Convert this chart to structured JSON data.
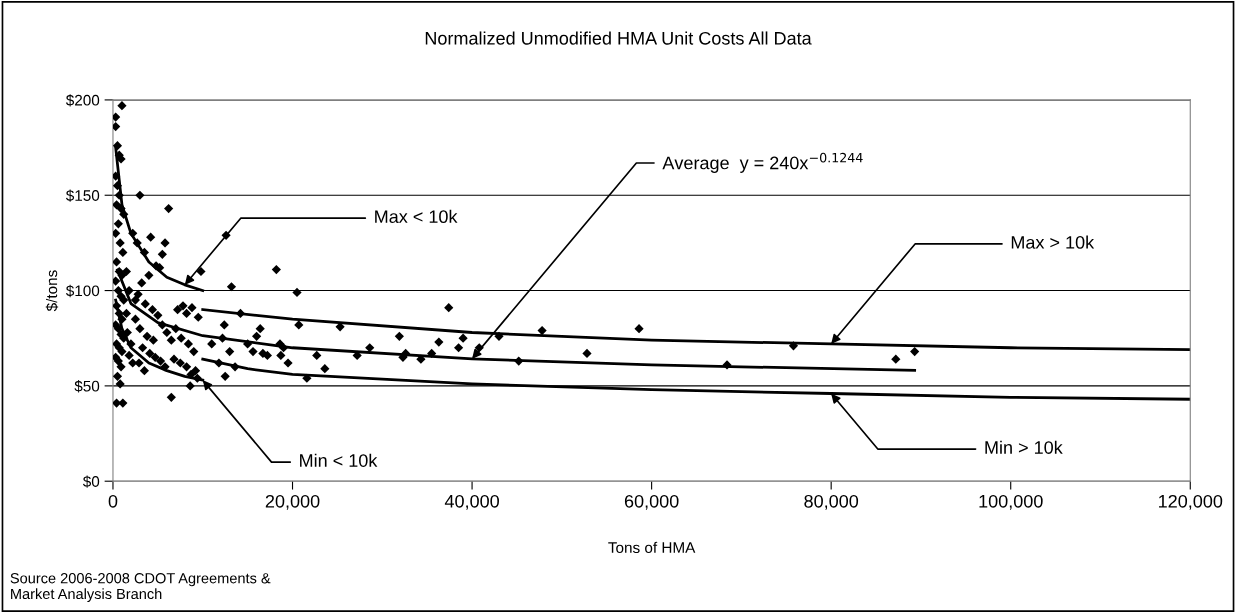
{
  "chart_data": {
    "type": "scatter",
    "title": "Normalized Unmodified HMA Unit Costs All Data",
    "xlabel": "Tons of HMA",
    "ylabel": "$/tons",
    "xlim": [
      0,
      120000
    ],
    "ylim": [
      0,
      200
    ],
    "xticks": [
      {
        "value": 0,
        "label": "0"
      },
      {
        "value": 20000,
        "label": "20,000"
      },
      {
        "value": 40000,
        "label": "40,000"
      },
      {
        "value": 60000,
        "label": "60,000"
      },
      {
        "value": 80000,
        "label": "80,000"
      },
      {
        "value": 100000,
        "label": "100,000"
      },
      {
        "value": 120000,
        "label": "120,000"
      }
    ],
    "yticks": [
      {
        "value": 0,
        "label": "$0"
      },
      {
        "value": 50,
        "label": "$50"
      },
      {
        "value": 100,
        "label": "$100"
      },
      {
        "value": 150,
        "label": "$150"
      },
      {
        "value": 200,
        "label": "$200"
      }
    ],
    "grid": "y",
    "legend": false,
    "series": [
      {
        "marker": "diamond",
        "color": "#000000",
        "x": [
          300,
          300,
          500,
          700,
          900,
          1000,
          300,
          500,
          700,
          400,
          900,
          1200,
          600,
          300,
          800,
          1100,
          400,
          700,
          1000,
          300,
          600,
          900,
          1200,
          400,
          700,
          1000,
          300,
          600,
          900,
          1200,
          400,
          700,
          1000,
          300,
          600,
          900,
          500,
          800,
          400,
          1100,
          1500,
          1800,
          1500,
          1600,
          2000,
          1800,
          2200,
          2500,
          3000,
          2200,
          2700,
          3500,
          4200,
          4800,
          5200,
          5800,
          6200,
          5500,
          4000,
          3200,
          2800,
          3600,
          4400,
          5000,
          2500,
          3000,
          3800,
          4500,
          5500,
          6000,
          6500,
          7200,
          7800,
          8200,
          8800,
          9500,
          9800,
          7000,
          7600,
          8400,
          9000,
          3300,
          4100,
          4700,
          5300,
          6800,
          7500,
          8200,
          8700,
          9200,
          8600,
          6500,
          5800,
          3500,
          2900,
          9400,
          11000,
          11800,
          12400,
          12600,
          13200,
          12200,
          13000,
          12500,
          13600,
          14200,
          15000,
          15600,
          16000,
          16400,
          16700,
          17200,
          18200,
          18600,
          18700,
          19000,
          19500,
          20500,
          20700,
          21600,
          22700,
          23600,
          25300,
          27200,
          28600,
          31900,
          32300,
          32600,
          34300,
          35500,
          36300,
          37400,
          38500,
          39000,
          40800,
          43000,
          45200,
          47800,
          52800,
          58600,
          68400,
          75800,
          87200,
          89300
        ],
        "values": [
          191,
          186,
          176,
          171,
          169,
          197,
          160,
          155,
          150,
          145,
          143,
          140,
          135,
          130,
          125,
          120,
          115,
          110,
          108,
          105,
          100,
          97,
          95,
          92,
          88,
          85,
          82,
          80,
          77,
          75,
          72,
          70,
          68,
          65,
          63,
          60,
          55,
          51,
          41,
          41,
          110,
          100,
          88,
          78,
          72,
          66,
          62,
          95,
          150,
          130,
          125,
          120,
          128,
          113,
          112,
          125,
          143,
          119,
          108,
          104,
          98,
          93,
          90,
          87,
          85,
          80,
          76,
          74,
          82,
          78,
          74,
          90,
          92,
          88,
          91,
          86,
          110,
          80,
          75,
          72,
          68,
          70,
          67,
          65,
          63,
          64,
          62,
          60,
          56,
          58,
          50,
          44,
          60,
          58,
          62,
          54,
          72,
          62,
          82,
          129,
          102,
          75,
          68,
          55,
          60,
          88,
          72,
          68,
          76,
          80,
          67,
          66,
          111,
          72,
          66,
          70,
          62,
          99,
          82,
          54,
          66,
          59,
          81,
          66,
          70,
          76,
          65,
          67,
          64,
          67,
          73,
          91,
          70,
          75,
          70,
          76,
          63,
          79,
          67,
          80,
          61,
          71,
          64,
          68
        ]
      },
      {
        "type": "line",
        "color": "#000000",
        "x": [
          300,
          1000,
          2000,
          4000,
          6000,
          8000,
          10000
        ],
        "values": [
          175,
          145,
          130,
          115,
          107,
          103,
          100
        ]
      },
      {
        "type": "line",
        "color": "#000000",
        "x": [
          300,
          1000,
          2000,
          4000,
          6000,
          8000,
          10000
        ],
        "values": [
          95,
          80,
          70,
          62,
          58,
          55,
          53
        ]
      },
      {
        "type": "line",
        "color": "#000000",
        "x": [
          500,
          2000,
          5000,
          10000,
          20000,
          40000,
          60000,
          89300
        ],
        "values": [
          110.8,
          93.2,
          83.2,
          76.3,
          70.0,
          64.2,
          61.0,
          58.1
        ]
      },
      {
        "type": "line",
        "color": "#000000",
        "x": [
          10000,
          20000,
          40000,
          60000,
          80000,
          100000,
          120000
        ],
        "values": [
          90,
          85,
          78,
          74,
          72,
          70,
          69
        ]
      },
      {
        "type": "line",
        "color": "#000000",
        "x": [
          10000,
          15000,
          20000,
          40000,
          60000,
          80000,
          100000,
          120000
        ],
        "values": [
          64,
          59,
          56,
          51,
          48,
          46,
          44,
          43
        ]
      }
    ],
    "annotations": [
      {
        "text": "Max < 10k",
        "x": 8000,
        "y": 103
      },
      {
        "text": "Average  y = 240x$^{−0.1244}$",
        "x": 40000,
        "y": 64.2
      },
      {
        "text": "Max > 10k",
        "x": 80000,
        "y": 72
      },
      {
        "text": "Min < 10k",
        "x": 10000,
        "y": 53
      },
      {
        "text": "Min > 10k",
        "x": 80000,
        "y": 46
      },
      "Source 2006-2008 CDOT Agreements &\nMarket Analysis Branch"
    ]
  }
}
